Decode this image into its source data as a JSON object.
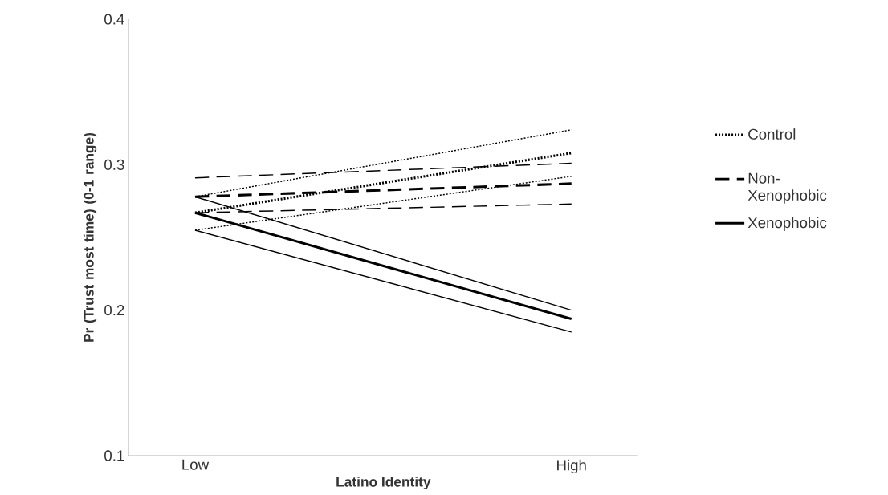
{
  "chart_data": {
    "type": "line",
    "xlabel": "Latino Identity",
    "ylabel": "Pr (Trust most time) (0-1 range)",
    "categories": [
      "Low",
      "High"
    ],
    "series": [
      {
        "name": "Control",
        "color": "#000000",
        "line_style": "dotted",
        "values": [
          0.267,
          0.308
        ]
      },
      {
        "color": "#000000",
        "line_style": "dotted",
        "values": [
          0.255,
          0.292
        ]
      },
      {
        "color": "#000000",
        "line_style": "dotted",
        "values": [
          0.278,
          0.324
        ]
      },
      {
        "name": "Non-Xenophobic",
        "color": "#000000",
        "line_style": "dashed",
        "values": [
          0.278,
          0.287
        ]
      },
      {
        "color": "#000000",
        "line_style": "dashed",
        "values": [
          0.267,
          0.273
        ]
      },
      {
        "color": "#000000",
        "line_style": "dashed",
        "values": [
          0.291,
          0.301
        ]
      },
      {
        "name": "Xenophobic",
        "color": "#000000",
        "line_style": "solid",
        "values": [
          0.267,
          0.194
        ]
      },
      {
        "color": "#000000",
        "line_style": "solid",
        "values": [
          0.255,
          0.185
        ]
      },
      {
        "color": "#000000",
        "line_style": "solid",
        "values": [
          0.278,
          0.2
        ]
      }
    ],
    "ylim": [
      0.1,
      0.4
    ],
    "yticks": [
      0.1,
      0.2,
      0.3,
      0.4
    ],
    "legend": "right"
  }
}
